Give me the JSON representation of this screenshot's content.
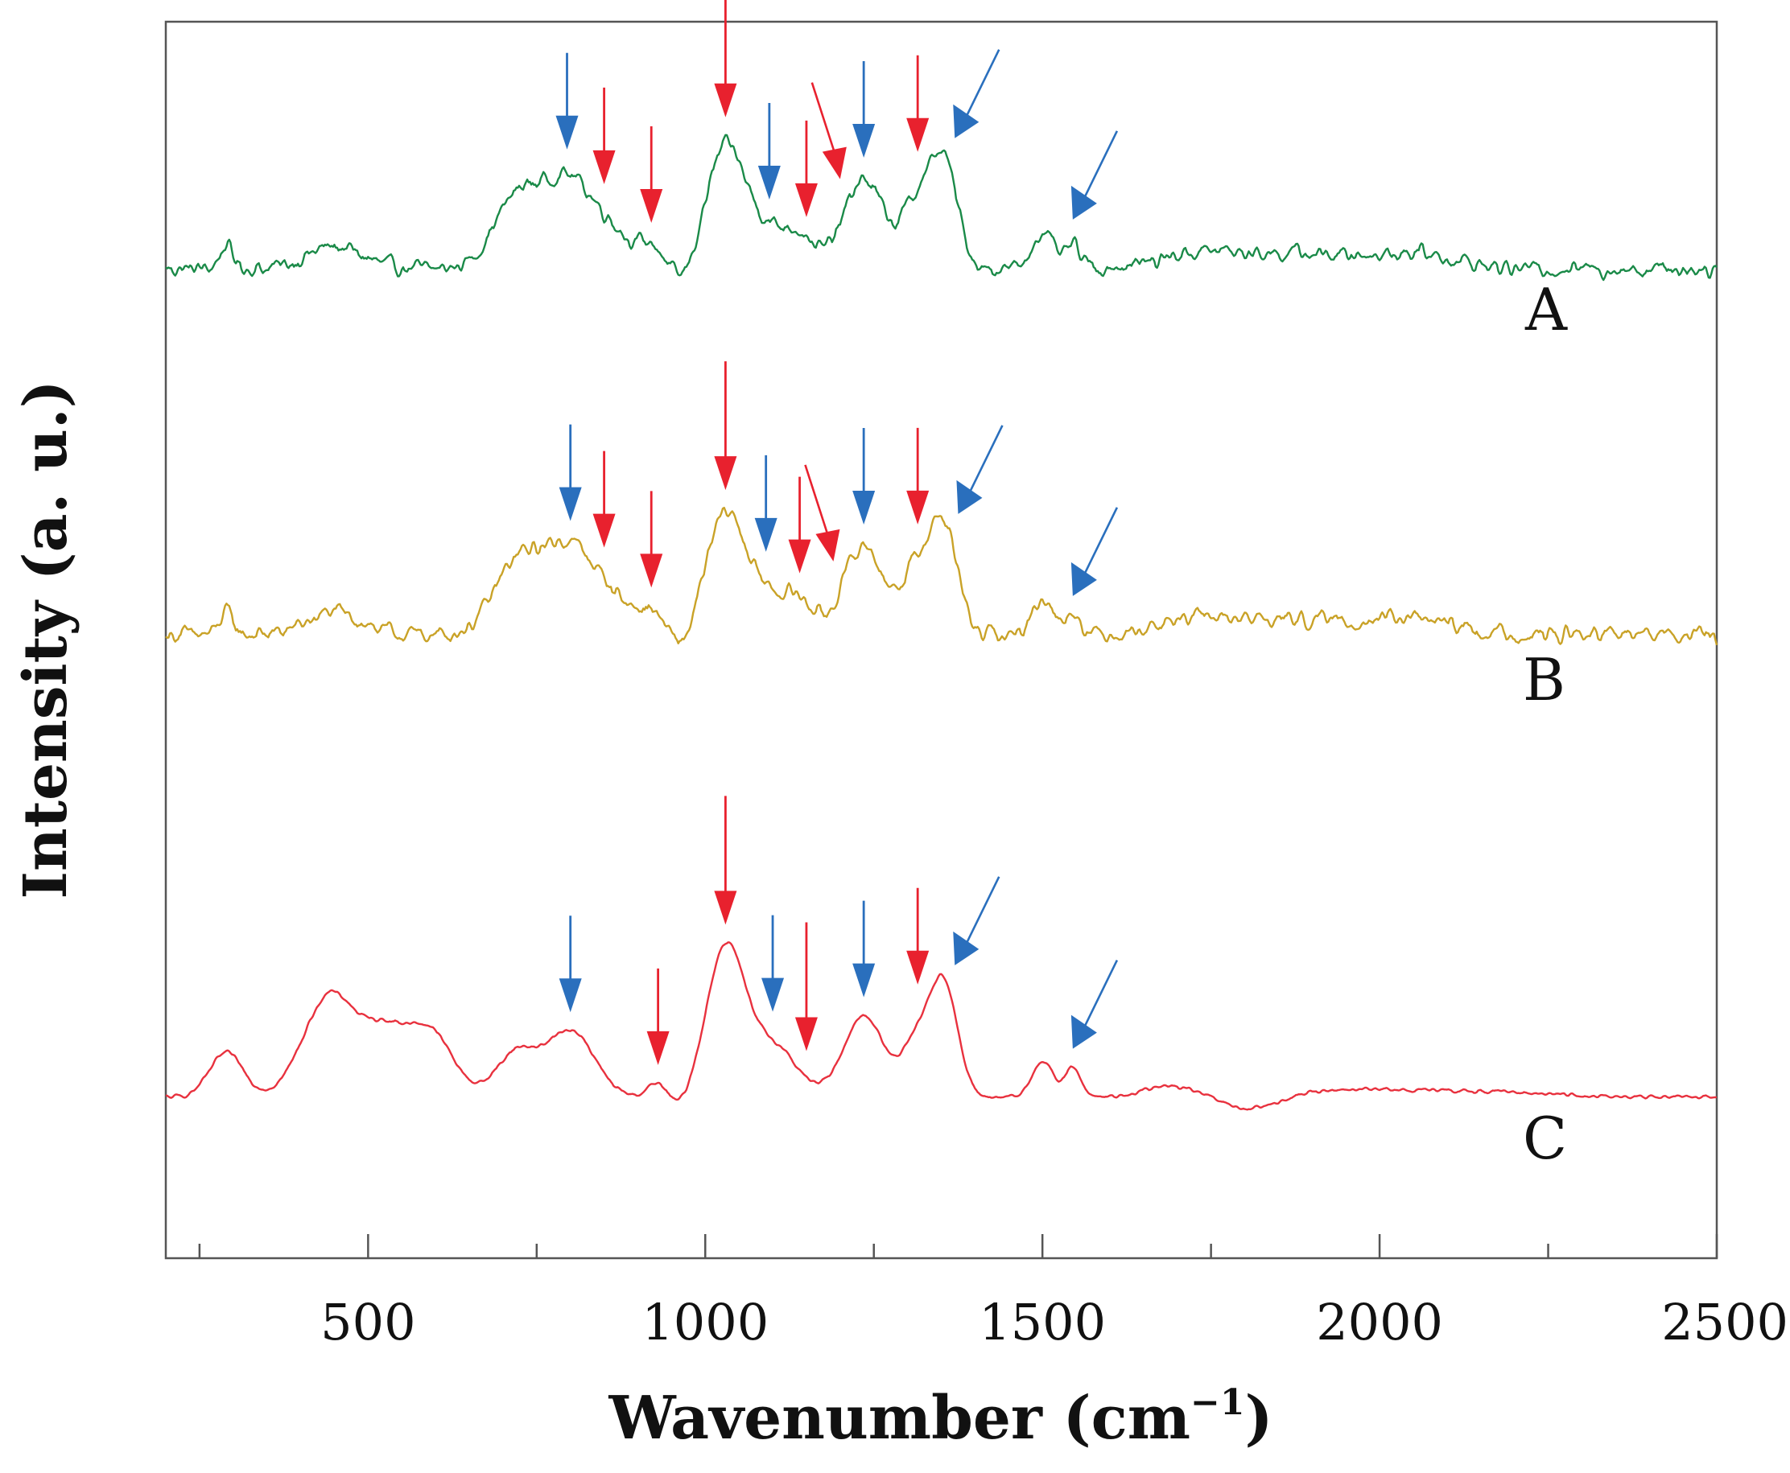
{
  "chart_data": {
    "type": "line",
    "title": "",
    "xlabel_main": "Wavenumber (cm",
    "xlabel_sup": "−1",
    "xlabel_close": ")",
    "ylabel": "Intensity (a. u.)",
    "xlim": [
      200,
      2500
    ],
    "xticks_major": [
      500,
      1000,
      1500,
      2000,
      2500
    ],
    "xticks_minor": [
      250,
      750,
      1250,
      1750,
      2250
    ],
    "y_ticks": "none",
    "grid": false,
    "colors": {
      "red_arrow": "#e8212e",
      "blue_arrow": "#2a6fbd"
    },
    "series": [
      {
        "name": "A",
        "color": "#1a8a48",
        "baseline": 20,
        "noise": 1.2,
        "peaks": [
          [
            720,
            9,
            35
          ],
          [
            800,
            12,
            40
          ],
          [
            870,
            3,
            25
          ],
          [
            920,
            3,
            18
          ],
          [
            1030,
            16,
            28
          ],
          [
            1090,
            5,
            30
          ],
          [
            1140,
            4,
            22
          ],
          [
            1235,
            12,
            30
          ],
          [
            1315,
            9,
            25
          ],
          [
            1355,
            13,
            20
          ],
          [
            1500,
            5,
            15
          ],
          [
            1545,
            3,
            12
          ],
          [
            290,
            3,
            10
          ],
          [
            450,
            3,
            40
          ],
          [
            1730,
            2,
            60
          ],
          [
            1880,
            2,
            80
          ],
          [
            2050,
            2,
            60
          ]
        ],
        "dips": [
          [
            965,
            -2,
            15
          ],
          [
            1280,
            -1,
            15
          ]
        ],
        "red_arrows": [
          850,
          920,
          1030,
          1150,
          1200,
          1315
        ],
        "blue_arrows": [
          795,
          1095,
          1235,
          1370,
          1545
        ]
      },
      {
        "name": "B",
        "color": "#c9a227",
        "baseline": 20,
        "noise": 1.2,
        "peaks": [
          [
            720,
            9,
            35
          ],
          [
            800,
            12,
            40
          ],
          [
            870,
            3,
            25
          ],
          [
            920,
            3,
            18
          ],
          [
            1030,
            16,
            28
          ],
          [
            1090,
            5,
            30
          ],
          [
            1140,
            4,
            22
          ],
          [
            1235,
            12,
            30
          ],
          [
            1315,
            9,
            25
          ],
          [
            1355,
            13,
            20
          ],
          [
            1500,
            5,
            15
          ],
          [
            1545,
            3,
            12
          ],
          [
            290,
            3,
            10
          ],
          [
            450,
            3,
            40
          ],
          [
            1730,
            2,
            60
          ],
          [
            1880,
            2,
            80
          ],
          [
            2050,
            2,
            60
          ]
        ],
        "dips": [
          [
            965,
            -2,
            15
          ],
          [
            1280,
            -1,
            15
          ]
        ],
        "red_arrows": [
          850,
          920,
          1030,
          1140,
          1190,
          1315
        ],
        "blue_arrows": [
          800,
          1090,
          1235,
          1375,
          1545
        ]
      },
      {
        "name": "C",
        "color": "#e8313e",
        "baseline": 20,
        "noise": 0.3,
        "peaks": [
          [
            290,
            6,
            25
          ],
          [
            445,
            14,
            40
          ],
          [
            525,
            7,
            30
          ],
          [
            590,
            9,
            35
          ],
          [
            720,
            6,
            30
          ],
          [
            800,
            9,
            35
          ],
          [
            930,
            2,
            15
          ],
          [
            1030,
            20,
            28
          ],
          [
            1100,
            7,
            35
          ],
          [
            1235,
            11,
            30
          ],
          [
            1315,
            8,
            25
          ],
          [
            1355,
            14,
            20
          ],
          [
            1500,
            5,
            15
          ],
          [
            1545,
            4,
            12
          ],
          [
            1690,
            1.5,
            40
          ],
          [
            1950,
            1,
            80
          ],
          [
            2150,
            0.8,
            100
          ]
        ],
        "dips": [
          [
            960,
            -1.5,
            15
          ],
          [
            1280,
            -1,
            15
          ],
          [
            1810,
            -1.8,
            40
          ]
        ],
        "red_arrows": [
          930,
          1030,
          1150,
          1315
        ],
        "blue_arrows": [
          800,
          1100,
          1235,
          1370,
          1545
        ]
      }
    ]
  }
}
